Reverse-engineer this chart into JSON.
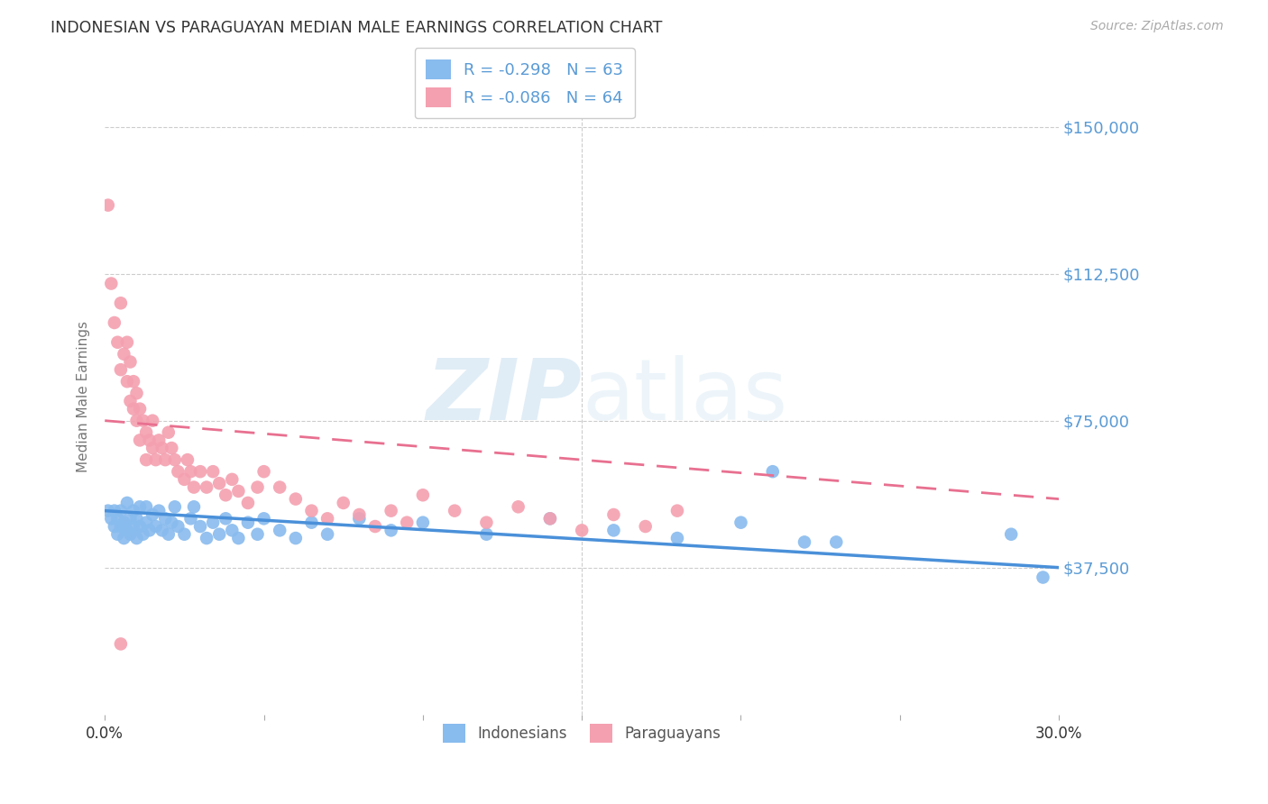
{
  "title": "INDONESIAN VS PARAGUAYAN MEDIAN MALE EARNINGS CORRELATION CHART",
  "source": "Source: ZipAtlas.com",
  "ylabel": "Median Male Earnings",
  "xlim": [
    0.0,
    0.3
  ],
  "ylim": [
    0,
    162500
  ],
  "yticks": [
    0,
    37500,
    75000,
    112500,
    150000
  ],
  "ytick_labels": [
    "",
    "$37,500",
    "$75,000",
    "$112,500",
    "$150,000"
  ],
  "xticks": [
    0.0,
    0.05,
    0.1,
    0.15,
    0.2,
    0.25,
    0.3
  ],
  "xtick_labels": [
    "0.0%",
    "",
    "",
    "",
    "",
    "",
    "30.0%"
  ],
  "indonesian_color": "#88BBEE",
  "paraguayan_color": "#F4A0B0",
  "trend_blue": "#4A90D9",
  "trend_pink": "#E87090",
  "legend_r_blue": "R = -0.298",
  "legend_n_blue": "N = 63",
  "legend_r_pink": "R = -0.086",
  "legend_n_pink": "N = 64",
  "label_indonesians": "Indonesians",
  "label_paraguayans": "Paraguayans",
  "watermark_zip": "ZIP",
  "watermark_atlas": "atlas",
  "background_color": "#FFFFFF",
  "grid_color": "#CCCCCC",
  "title_color": "#333333",
  "axis_label_color": "#777777",
  "right_label_color": "#5B9BD5",
  "indonesian_points": [
    [
      0.001,
      52000
    ],
    [
      0.002,
      50000
    ],
    [
      0.003,
      48000
    ],
    [
      0.003,
      52000
    ],
    [
      0.004,
      46000
    ],
    [
      0.004,
      50000
    ],
    [
      0.005,
      48000
    ],
    [
      0.005,
      52000
    ],
    [
      0.006,
      45000
    ],
    [
      0.006,
      49000
    ],
    [
      0.007,
      47000
    ],
    [
      0.007,
      54000
    ],
    [
      0.008,
      46000
    ],
    [
      0.008,
      50000
    ],
    [
      0.009,
      48000
    ],
    [
      0.009,
      52000
    ],
    [
      0.01,
      45000
    ],
    [
      0.01,
      50000
    ],
    [
      0.011,
      48000
    ],
    [
      0.011,
      53000
    ],
    [
      0.012,
      46000
    ],
    [
      0.013,
      49000
    ],
    [
      0.013,
      53000
    ],
    [
      0.014,
      47000
    ],
    [
      0.015,
      51000
    ],
    [
      0.016,
      48000
    ],
    [
      0.017,
      52000
    ],
    [
      0.018,
      47000
    ],
    [
      0.019,
      50000
    ],
    [
      0.02,
      46000
    ],
    [
      0.021,
      49000
    ],
    [
      0.022,
      53000
    ],
    [
      0.023,
      48000
    ],
    [
      0.025,
      46000
    ],
    [
      0.027,
      50000
    ],
    [
      0.028,
      53000
    ],
    [
      0.03,
      48000
    ],
    [
      0.032,
      45000
    ],
    [
      0.034,
      49000
    ],
    [
      0.036,
      46000
    ],
    [
      0.038,
      50000
    ],
    [
      0.04,
      47000
    ],
    [
      0.042,
      45000
    ],
    [
      0.045,
      49000
    ],
    [
      0.048,
      46000
    ],
    [
      0.05,
      50000
    ],
    [
      0.055,
      47000
    ],
    [
      0.06,
      45000
    ],
    [
      0.065,
      49000
    ],
    [
      0.07,
      46000
    ],
    [
      0.08,
      50000
    ],
    [
      0.09,
      47000
    ],
    [
      0.1,
      49000
    ],
    [
      0.12,
      46000
    ],
    [
      0.14,
      50000
    ],
    [
      0.16,
      47000
    ],
    [
      0.18,
      45000
    ],
    [
      0.2,
      49000
    ],
    [
      0.21,
      62000
    ],
    [
      0.22,
      44000
    ],
    [
      0.23,
      44000
    ],
    [
      0.285,
      46000
    ],
    [
      0.295,
      35000
    ]
  ],
  "paraguayan_points": [
    [
      0.001,
      130000
    ],
    [
      0.002,
      110000
    ],
    [
      0.003,
      100000
    ],
    [
      0.004,
      95000
    ],
    [
      0.005,
      105000
    ],
    [
      0.005,
      88000
    ],
    [
      0.006,
      92000
    ],
    [
      0.007,
      85000
    ],
    [
      0.007,
      95000
    ],
    [
      0.008,
      80000
    ],
    [
      0.008,
      90000
    ],
    [
      0.009,
      78000
    ],
    [
      0.009,
      85000
    ],
    [
      0.01,
      75000
    ],
    [
      0.01,
      82000
    ],
    [
      0.011,
      78000
    ],
    [
      0.011,
      70000
    ],
    [
      0.012,
      75000
    ],
    [
      0.013,
      72000
    ],
    [
      0.013,
      65000
    ],
    [
      0.014,
      70000
    ],
    [
      0.015,
      68000
    ],
    [
      0.015,
      75000
    ],
    [
      0.016,
      65000
    ],
    [
      0.017,
      70000
    ],
    [
      0.018,
      68000
    ],
    [
      0.019,
      65000
    ],
    [
      0.02,
      72000
    ],
    [
      0.021,
      68000
    ],
    [
      0.022,
      65000
    ],
    [
      0.023,
      62000
    ],
    [
      0.025,
      60000
    ],
    [
      0.026,
      65000
    ],
    [
      0.027,
      62000
    ],
    [
      0.028,
      58000
    ],
    [
      0.03,
      62000
    ],
    [
      0.032,
      58000
    ],
    [
      0.034,
      62000
    ],
    [
      0.036,
      59000
    ],
    [
      0.038,
      56000
    ],
    [
      0.04,
      60000
    ],
    [
      0.042,
      57000
    ],
    [
      0.045,
      54000
    ],
    [
      0.048,
      58000
    ],
    [
      0.05,
      62000
    ],
    [
      0.055,
      58000
    ],
    [
      0.06,
      55000
    ],
    [
      0.065,
      52000
    ],
    [
      0.07,
      50000
    ],
    [
      0.075,
      54000
    ],
    [
      0.08,
      51000
    ],
    [
      0.085,
      48000
    ],
    [
      0.09,
      52000
    ],
    [
      0.095,
      49000
    ],
    [
      0.1,
      56000
    ],
    [
      0.11,
      52000
    ],
    [
      0.12,
      49000
    ],
    [
      0.13,
      53000
    ],
    [
      0.14,
      50000
    ],
    [
      0.15,
      47000
    ],
    [
      0.16,
      51000
    ],
    [
      0.17,
      48000
    ],
    [
      0.18,
      52000
    ],
    [
      0.005,
      18000
    ]
  ]
}
